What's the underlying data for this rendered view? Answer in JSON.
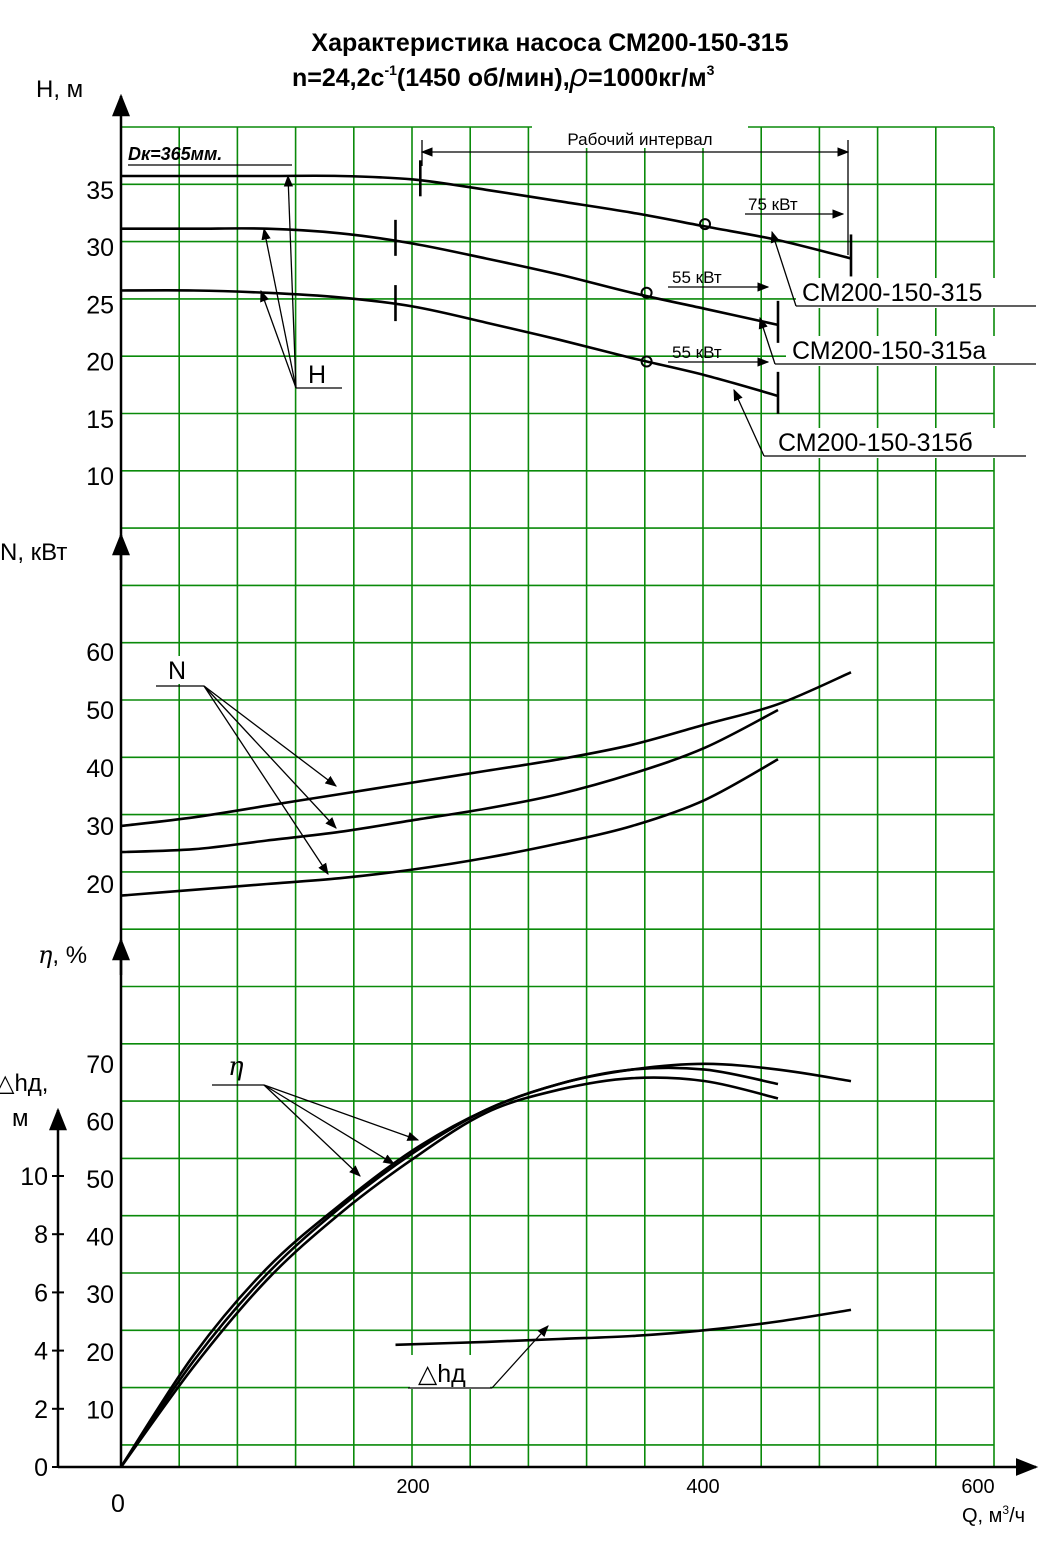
{
  "title": {
    "line1": "Характеристика насоса СМ200-150-315",
    "line2_prefix": "n=24,2с",
    "line2_sup": "-1",
    "line2_mid": "(1450 об/мин),",
    "line2_rho": "ρ",
    "line2_suffix": "=1000кг/м",
    "line2_sup2": "3"
  },
  "axes": {
    "H_label": "Н, м",
    "N_label": "N, кВт",
    "eta_label_sym": "η",
    "eta_label_unit": ", %",
    "npsh_label_line1": "△hд,",
    "npsh_label_line2": "м",
    "x_label_prefix": "Q, м",
    "x_label_sup": "3",
    "x_label_suffix": "/ч",
    "x_ticks": [
      "0",
      "200",
      "400",
      "600"
    ]
  },
  "annotations": {
    "dk": "Dк=365мм.",
    "work_interval": "Рабочий интервал",
    "p75": "75 кВт",
    "p55a": "55 кВт",
    "p55b": "55 кВт",
    "pump_315": "СМ200-150-315",
    "pump_315a": "СМ200-150-315а",
    "pump_315b": "СМ200-150-315б",
    "H_curve_label": "Н",
    "N_curve_label": "N",
    "eta_curve_label": "η",
    "npsh_curve_label": "△hд"
  },
  "chart_data": [
    {
      "type": "line",
      "name": "H",
      "x_unit": "м3/ч",
      "y_unit": "м",
      "ylim": [
        5,
        41
      ],
      "y_ticks": [
        10,
        15,
        20,
        25,
        30,
        35
      ],
      "work_interval": [
        205,
        500
      ],
      "series": [
        {
          "name": "СМ200-150-315",
          "x": [
            0,
            50,
            100,
            150,
            200,
            250,
            300,
            350,
            400,
            450,
            500
          ],
          "y": [
            36.2,
            36.2,
            36.2,
            36.2,
            35.9,
            35.0,
            34.0,
            33.0,
            31.8,
            30.6,
            29.0
          ],
          "rated": [
            400,
            32.0
          ],
          "power": "75 кВт"
        },
        {
          "name": "СМ200-150-315а",
          "x": [
            0,
            50,
            100,
            150,
            200,
            250,
            300,
            350,
            400,
            450
          ],
          "y": [
            31.6,
            31.6,
            31.6,
            31.2,
            30.3,
            29.0,
            27.6,
            26.0,
            24.6,
            23.2
          ],
          "rated": [
            360,
            26.0
          ],
          "power": "55 кВт"
        },
        {
          "name": "СМ200-150-315б",
          "x": [
            0,
            50,
            100,
            150,
            200,
            250,
            300,
            350,
            400,
            450
          ],
          "y": [
            26.2,
            26.2,
            26.0,
            25.6,
            24.8,
            23.4,
            21.9,
            20.3,
            18.8,
            17.0
          ],
          "rated": [
            360,
            20.0
          ],
          "power": "55 кВт"
        }
      ]
    },
    {
      "type": "line",
      "name": "N",
      "x_unit": "м3/ч",
      "y_unit": "кВт",
      "ylim": [
        10,
        75
      ],
      "y_ticks": [
        20,
        30,
        40,
        50,
        60
      ],
      "series": [
        {
          "name": "СМ200-150-315",
          "x": [
            0,
            50,
            100,
            150,
            200,
            250,
            300,
            350,
            400,
            450,
            500
          ],
          "y": [
            30.0,
            31.5,
            33.5,
            35.5,
            37.5,
            39.5,
            41.5,
            44.0,
            47.5,
            51.0,
            56.5
          ]
        },
        {
          "name": "СМ200-150-315а",
          "x": [
            0,
            50,
            100,
            150,
            200,
            250,
            300,
            350,
            400,
            450
          ],
          "y": [
            25.5,
            26.0,
            27.5,
            29.0,
            31.0,
            33.0,
            35.5,
            39.0,
            43.5,
            50.0
          ]
        },
        {
          "name": "СМ200-150-315б",
          "x": [
            0,
            50,
            100,
            150,
            200,
            250,
            300,
            350,
            400,
            450
          ],
          "y": [
            18.0,
            19.0,
            20.0,
            21.0,
            22.5,
            24.5,
            27.0,
            30.0,
            34.5,
            41.5
          ]
        }
      ]
    },
    {
      "type": "line",
      "name": "η",
      "x_unit": "м3/ч",
      "y_unit": "%",
      "ylim": [
        0,
        85
      ],
      "y_ticks": [
        10,
        20,
        30,
        40,
        50,
        60,
        70
      ],
      "series": [
        {
          "name": "СМ200-150-315",
          "x": [
            0,
            50,
            100,
            150,
            200,
            250,
            300,
            350,
            400,
            450,
            500
          ],
          "y": [
            0,
            19.5,
            34.5,
            45.5,
            55.0,
            62.0,
            66.5,
            69.0,
            70.0,
            69.0,
            67.0
          ]
        },
        {
          "name": "СМ200-150-315а",
          "x": [
            0,
            50,
            100,
            150,
            200,
            250,
            300,
            350,
            400,
            450
          ],
          "y": [
            0,
            18.5,
            33.5,
            45.0,
            54.5,
            62.0,
            66.5,
            69.0,
            69.0,
            66.5
          ]
        },
        {
          "name": "СМ200-150-315б",
          "x": [
            0,
            50,
            100,
            150,
            200,
            250,
            300,
            350,
            400,
            450
          ],
          "y": [
            0,
            17.5,
            32.5,
            44.0,
            53.5,
            61.5,
            65.5,
            67.5,
            67.0,
            64.0
          ]
        }
      ]
    },
    {
      "type": "line",
      "name": "△hд",
      "x_unit": "м3/ч",
      "y_unit": "м",
      "ylim": [
        0,
        12
      ],
      "y_ticks": [
        0,
        2,
        4,
        6,
        8,
        10
      ],
      "series": [
        {
          "name": "△hд",
          "x": [
            188,
            250,
            300,
            350,
            400,
            450,
            500
          ],
          "y": [
            4.2,
            4.3,
            4.4,
            4.5,
            4.7,
            5.0,
            5.4
          ]
        }
      ]
    }
  ]
}
